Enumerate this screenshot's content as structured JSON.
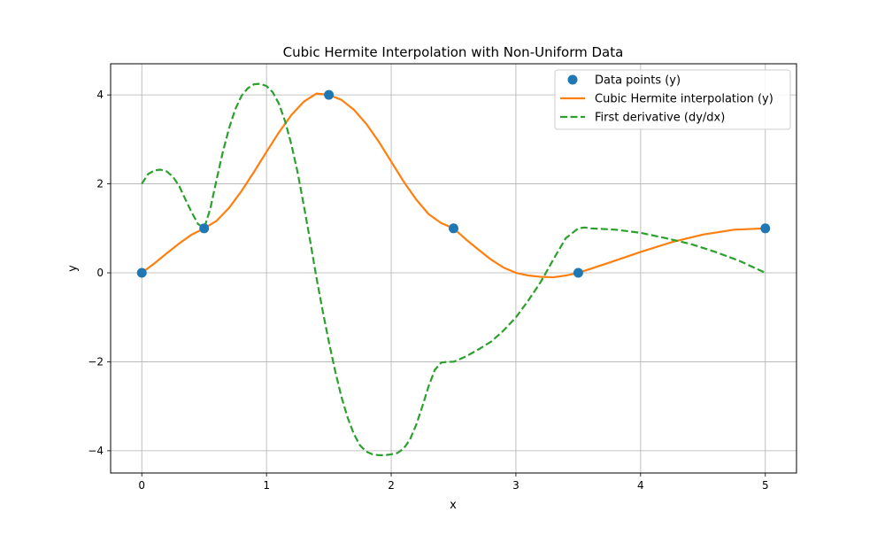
{
  "chart_data": {
    "type": "line",
    "title": "Cubic Hermite Interpolation with Non-Uniform Data",
    "xlabel": "x",
    "ylabel": "y",
    "xlim": [
      -0.25,
      5.25
    ],
    "ylim": [
      -4.5,
      4.7
    ],
    "xticks": [
      0,
      1,
      2,
      3,
      4,
      5
    ],
    "yticks": [
      -4,
      -2,
      0,
      2,
      4
    ],
    "xtick_labels": [
      "0",
      "1",
      "2",
      "3",
      "4",
      "5"
    ],
    "ytick_labels": [
      "−4",
      "−2",
      "0",
      "2",
      "4"
    ],
    "grid": true,
    "legend_position": "top-right",
    "series": [
      {
        "name": "Data points (y)",
        "kind": "scatter",
        "color": "#1f77b4",
        "x": [
          0,
          0.5,
          1.5,
          2.5,
          3.5,
          5
        ],
        "y": [
          0,
          1,
          4,
          1,
          0,
          1
        ]
      },
      {
        "name": "Cubic Hermite interpolation (y)",
        "kind": "line",
        "color": "#ff7f0e",
        "dash": "solid",
        "x": [
          0,
          0.1,
          0.2,
          0.3,
          0.4,
          0.5,
          0.6,
          0.7,
          0.8,
          0.9,
          1.0,
          1.1,
          1.2,
          1.3,
          1.4,
          1.5,
          1.6,
          1.7,
          1.8,
          1.9,
          2.0,
          2.1,
          2.2,
          2.3,
          2.4,
          2.5,
          2.6,
          2.7,
          2.8,
          2.9,
          3.0,
          3.1,
          3.2,
          3.3,
          3.4,
          3.5,
          3.75,
          4.0,
          4.25,
          4.5,
          4.75,
          5.0
        ],
        "y": [
          0,
          0.21,
          0.44,
          0.66,
          0.86,
          1.0,
          1.17,
          1.46,
          1.84,
          2.27,
          2.72,
          3.16,
          3.55,
          3.85,
          4.03,
          4.0,
          3.89,
          3.67,
          3.35,
          2.95,
          2.5,
          2.05,
          1.65,
          1.32,
          1.12,
          1.0,
          0.75,
          0.52,
          0.3,
          0.12,
          0.0,
          -0.06,
          -0.09,
          -0.1,
          -0.06,
          0.0,
          0.23,
          0.47,
          0.69,
          0.86,
          0.97,
          1.0
        ]
      },
      {
        "name": "First derivative (dy/dx)",
        "kind": "line",
        "color": "#2ca02c",
        "dash": "dashed",
        "x": [
          0,
          0.05,
          0.1,
          0.15,
          0.2,
          0.25,
          0.3,
          0.35,
          0.4,
          0.45,
          0.5,
          0.55,
          0.6,
          0.65,
          0.7,
          0.75,
          0.8,
          0.85,
          0.9,
          0.95,
          1.0,
          1.05,
          1.1,
          1.15,
          1.2,
          1.25,
          1.3,
          1.35,
          1.4,
          1.45,
          1.5,
          1.55,
          1.6,
          1.65,
          1.7,
          1.75,
          1.8,
          1.85,
          1.9,
          1.95,
          2.0,
          2.05,
          2.1,
          2.15,
          2.2,
          2.25,
          2.3,
          2.35,
          2.4,
          2.45,
          2.5,
          2.6,
          2.7,
          2.8,
          2.9,
          3.0,
          3.1,
          3.2,
          3.3,
          3.4,
          3.5,
          3.55,
          3.6,
          3.8,
          4.0,
          4.2,
          4.4,
          4.6,
          4.8,
          5.0
        ],
        "y": [
          2.0,
          2.22,
          2.3,
          2.32,
          2.28,
          2.16,
          1.95,
          1.65,
          1.36,
          1.1,
          1.0,
          1.45,
          2.1,
          2.72,
          3.25,
          3.68,
          3.98,
          4.15,
          4.24,
          4.25,
          4.2,
          4.06,
          3.8,
          3.4,
          2.88,
          2.25,
          1.5,
          0.72,
          -0.1,
          -0.85,
          -1.55,
          -2.2,
          -2.78,
          -3.25,
          -3.62,
          -3.88,
          -4.02,
          -4.08,
          -4.1,
          -4.1,
          -4.08,
          -4.05,
          -3.95,
          -3.75,
          -3.42,
          -3.0,
          -2.55,
          -2.18,
          -2.02,
          -2.0,
          -2.0,
          -1.88,
          -1.72,
          -1.55,
          -1.3,
          -1.0,
          -0.62,
          -0.2,
          0.3,
          0.78,
          1.0,
          1.02,
          1.0,
          0.97,
          0.9,
          0.78,
          0.65,
          0.47,
          0.26,
          0.0
        ]
      }
    ]
  }
}
